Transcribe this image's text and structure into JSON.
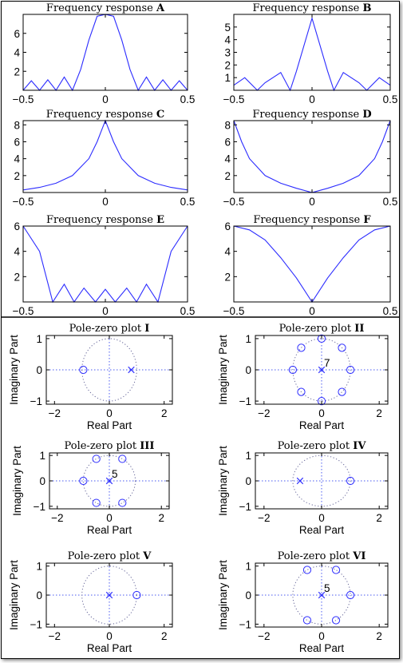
{
  "colors": {
    "curve": "#2c2cff",
    "axes": "#000000",
    "guides": "#4a5af0",
    "unit_circle": "#666699"
  },
  "freq_section": {
    "plots": [
      {
        "title_prefix": "Frequency response",
        "title_letter": "A",
        "xticks": [
          "−0.5",
          "0",
          "0.5"
        ],
        "yticks": [
          "2",
          "4",
          "6"
        ]
      },
      {
        "title_prefix": "Frequency response",
        "title_letter": "B",
        "xticks": [
          "−0.5",
          "0",
          "0.5"
        ],
        "yticks": [
          "1",
          "2",
          "3",
          "4",
          "5"
        ]
      },
      {
        "title_prefix": "Frequency response",
        "title_letter": "C",
        "xticks": [
          "−0.5",
          "0",
          "0.5"
        ],
        "yticks": [
          "2",
          "4",
          "6",
          "8"
        ]
      },
      {
        "title_prefix": "Frequency response",
        "title_letter": "D",
        "xticks": [
          "−0.5",
          "0",
          "0.5"
        ],
        "yticks": [
          "2",
          "4",
          "6",
          "8"
        ]
      },
      {
        "title_prefix": "Frequency response",
        "title_letter": "E",
        "xticks": [
          "−0.5",
          "0",
          "0.5"
        ],
        "yticks": [
          "2",
          "4",
          "6"
        ]
      },
      {
        "title_prefix": "Frequency response",
        "title_letter": "F",
        "xticks": [
          "−0.5",
          "0",
          "0.5"
        ],
        "yticks": [
          "2",
          "4",
          "6"
        ]
      }
    ]
  },
  "pz_section": {
    "xlabel": "Real Part",
    "ylabel": "Imaginary Part",
    "plots": [
      {
        "title_prefix": "Pole-zero plot",
        "title_roman": "I",
        "xticks": [
          "−2",
          "0",
          "2"
        ],
        "yticks": [
          "1",
          "0",
          "−1"
        ],
        "multiplicity_label": ""
      },
      {
        "title_prefix": "Pole-zero plot",
        "title_roman": "II",
        "xticks": [
          "−2",
          "0",
          "2"
        ],
        "yticks": [
          "1",
          "0",
          "−1"
        ],
        "multiplicity_label": "7"
      },
      {
        "title_prefix": "Pole-zero plot",
        "title_roman": "III",
        "xticks": [
          "−2",
          "0",
          "2"
        ],
        "yticks": [
          "1",
          "0",
          "−1"
        ],
        "multiplicity_label": "5"
      },
      {
        "title_prefix": "Pole-zero plot",
        "title_roman": "IV",
        "xticks": [
          "−2",
          "0",
          "2"
        ],
        "yticks": [
          "1",
          "0",
          "−1"
        ],
        "multiplicity_label": ""
      },
      {
        "title_prefix": "Pole-zero plot",
        "title_roman": "V",
        "xticks": [
          "−2",
          "0",
          "2"
        ],
        "yticks": [
          "1",
          "0",
          "−1"
        ],
        "multiplicity_label": ""
      },
      {
        "title_prefix": "Pole-zero plot",
        "title_roman": "VI",
        "xticks": [
          "−2",
          "0",
          "2"
        ],
        "yticks": [
          "1",
          "0",
          "−1"
        ],
        "multiplicity_label": "5"
      }
    ]
  },
  "chart_data": [
    {
      "type": "line",
      "title": "Frequency response A",
      "xlim": [
        -0.5,
        0.5
      ],
      "ylim": [
        0,
        8
      ],
      "x": [
        -0.5,
        -0.45,
        -0.4,
        -0.35,
        -0.3,
        -0.25,
        -0.2,
        -0.15,
        -0.1,
        -0.05,
        0,
        0.05,
        0.1,
        0.15,
        0.2,
        0.25,
        0.3,
        0.35,
        0.4,
        0.45,
        0.5
      ],
      "y": [
        0,
        1.0,
        0,
        1.1,
        0,
        1.4,
        0,
        2.2,
        5.3,
        7.8,
        8,
        7.8,
        5.3,
        2.2,
        0,
        1.4,
        0,
        1.1,
        0,
        1.0,
        0
      ]
    },
    {
      "type": "line",
      "title": "Frequency response B",
      "xlim": [
        -0.5,
        0.5
      ],
      "ylim": [
        0,
        6
      ],
      "x": [
        -0.5,
        -0.43,
        -0.35,
        -0.3,
        -0.2,
        -0.14,
        -0.1,
        0,
        0.1,
        0.14,
        0.2,
        0.3,
        0.35,
        0.43,
        0.5
      ],
      "y": [
        0.4,
        1.0,
        0,
        0.6,
        1.4,
        0,
        1.5,
        5.7,
        1.5,
        0,
        1.4,
        0.6,
        0,
        1.0,
        0.4
      ]
    },
    {
      "type": "line",
      "title": "Frequency response C",
      "xlim": [
        -0.5,
        0.5
      ],
      "ylim": [
        0,
        8.5
      ],
      "x": [
        -0.5,
        -0.4,
        -0.3,
        -0.2,
        -0.1,
        -0.05,
        0,
        0.05,
        0.1,
        0.2,
        0.3,
        0.4,
        0.5
      ],
      "y": [
        0.3,
        0.6,
        1.1,
        2.0,
        4.0,
        6.0,
        8.5,
        6.0,
        4.0,
        2.0,
        1.1,
        0.6,
        0.3
      ]
    },
    {
      "type": "line",
      "title": "Frequency response D",
      "xlim": [
        -0.5,
        0.5
      ],
      "ylim": [
        0,
        8.5
      ],
      "x": [
        -0.5,
        -0.45,
        -0.4,
        -0.3,
        -0.2,
        -0.1,
        0,
        0.1,
        0.2,
        0.3,
        0.4,
        0.45,
        0.5
      ],
      "y": [
        8.5,
        6.0,
        4.0,
        2.0,
        1.1,
        0.5,
        0,
        0.5,
        1.1,
        2.0,
        4.0,
        6.0,
        8.5
      ]
    },
    {
      "type": "line",
      "title": "Frequency response E",
      "xlim": [
        -0.5,
        0.5
      ],
      "ylim": [
        0,
        6
      ],
      "x": [
        -0.5,
        -0.4,
        -0.32,
        -0.25,
        -0.19,
        -0.13,
        -0.06,
        0,
        0.06,
        0.13,
        0.19,
        0.25,
        0.32,
        0.4,
        0.5
      ],
      "y": [
        6,
        4.0,
        0,
        1.4,
        0,
        1.1,
        0,
        1.0,
        0,
        1.1,
        0,
        1.4,
        0,
        4.0,
        6
      ]
    },
    {
      "type": "line",
      "title": "Frequency response F",
      "xlim": [
        -0.5,
        0.5
      ],
      "ylim": [
        0,
        6
      ],
      "x": [
        -0.5,
        -0.4,
        -0.3,
        -0.2,
        -0.1,
        0,
        0.1,
        0.2,
        0.3,
        0.4,
        0.5
      ],
      "y": [
        6,
        5.7,
        4.9,
        3.5,
        1.9,
        0,
        1.9,
        3.5,
        4.9,
        5.7,
        6
      ]
    },
    {
      "type": "scatter",
      "title": "Pole-zero plot I",
      "xlabel": "Real Part",
      "ylabel": "Imaginary Part",
      "xlim": [
        -2.3,
        2.3
      ],
      "ylim": [
        -1.1,
        1.1
      ],
      "zeros": [
        [
          -0.95,
          0
        ]
      ],
      "poles": [
        [
          0.8,
          0
        ]
      ],
      "pole_multiplicity": 1
    },
    {
      "type": "scatter",
      "title": "Pole-zero plot II",
      "xlabel": "Real Part",
      "ylabel": "Imaginary Part",
      "xlim": [
        -2.3,
        2.3
      ],
      "ylim": [
        -1.1,
        1.1
      ],
      "zeros": [
        [
          1,
          0
        ],
        [
          0.707,
          0.707
        ],
        [
          0,
          1
        ],
        [
          -0.707,
          0.707
        ],
        [
          -1,
          0
        ],
        [
          -0.707,
          -0.707
        ],
        [
          0,
          -1
        ],
        [
          0.707,
          -0.707
        ]
      ],
      "poles": [
        [
          0,
          0
        ]
      ],
      "pole_multiplicity": 7
    },
    {
      "type": "scatter",
      "title": "Pole-zero plot III",
      "xlabel": "Real Part",
      "ylabel": "Imaginary Part",
      "xlim": [
        -2.3,
        2.3
      ],
      "ylim": [
        -1.1,
        1.1
      ],
      "zeros": [
        [
          -1,
          0
        ],
        [
          -0.5,
          0.866
        ],
        [
          0.5,
          0.866
        ],
        [
          -0.5,
          -0.866
        ],
        [
          0.5,
          -0.866
        ]
      ],
      "poles": [
        [
          0,
          0
        ]
      ],
      "pole_multiplicity": 5
    },
    {
      "type": "scatter",
      "title": "Pole-zero plot IV",
      "xlabel": "Real Part",
      "ylabel": "Imaginary Part",
      "xlim": [
        -2.3,
        2.3
      ],
      "ylim": [
        -1.1,
        1.1
      ],
      "zeros": [
        [
          1,
          0
        ]
      ],
      "poles": [
        [
          -0.75,
          0
        ]
      ],
      "pole_multiplicity": 1
    },
    {
      "type": "scatter",
      "title": "Pole-zero plot V",
      "xlabel": "Real Part",
      "ylabel": "Imaginary Part",
      "xlim": [
        -2.3,
        2.3
      ],
      "ylim": [
        -1.1,
        1.1
      ],
      "zeros": [
        [
          1,
          0
        ]
      ],
      "poles": [
        [
          0,
          0
        ]
      ],
      "pole_multiplicity": 1
    },
    {
      "type": "scatter",
      "title": "Pole-zero plot VI",
      "xlabel": "Real Part",
      "ylabel": "Imaginary Part",
      "xlim": [
        -2.3,
        2.3
      ],
      "ylim": [
        -1.1,
        1.1
      ],
      "zeros": [
        [
          1,
          0
        ],
        [
          0.5,
          0.866
        ],
        [
          -0.5,
          0.866
        ],
        [
          -0.5,
          -0.866
        ],
        [
          0.5,
          -0.866
        ]
      ],
      "poles": [
        [
          0,
          0
        ]
      ],
      "pole_multiplicity": 5
    }
  ]
}
